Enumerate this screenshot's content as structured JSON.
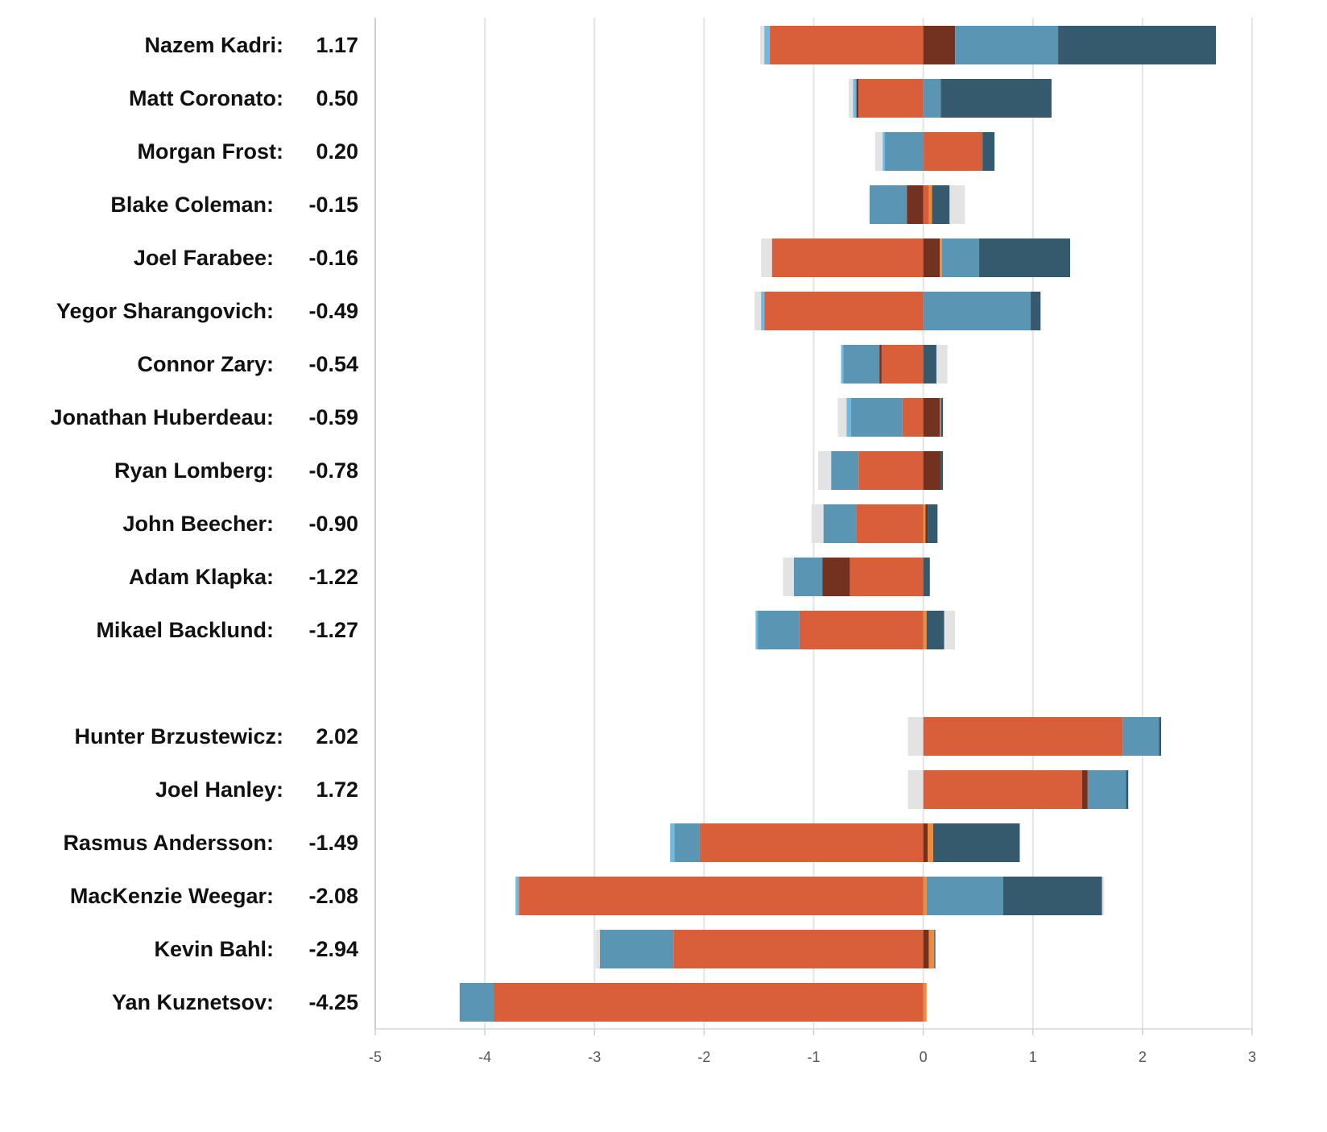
{
  "chart_data": {
    "type": "bar",
    "orientation": "horizontal-stacked-diverging",
    "title": "",
    "xlabel": "",
    "ylabel": "",
    "xlim": [
      -5,
      3
    ],
    "xticks": [
      -5,
      -4,
      -3,
      -2,
      -1,
      0,
      1,
      2,
      3
    ],
    "grid": true,
    "colors": {
      "gray": "#e3e3e3",
      "lightblue": "#6fb9e3",
      "blue": "#5b95b4",
      "red": "#d95f3b",
      "brown": "#73311f",
      "orange": "#ee8a3c",
      "dark": "#365a6d"
    },
    "groups": [
      {
        "players": [
          {
            "name": "Nazem Kadri:",
            "value": "1.17",
            "segments": [
              [
                "gray",
                -1.49,
                -1.45
              ],
              [
                "lightblue",
                -1.45,
                -1.4
              ],
              [
                "red",
                -1.4,
                0
              ],
              [
                "brown",
                0,
                0.29
              ],
              [
                "blue",
                0.29,
                1.23
              ],
              [
                "dark",
                1.23,
                2.67
              ]
            ]
          },
          {
            "name": "Matt Coronato:",
            "value": "0.50",
            "segments": [
              [
                "gray",
                -0.68,
                -0.64
              ],
              [
                "lightblue",
                -0.64,
                -0.61
              ],
              [
                "brown",
                -0.61,
                -0.59
              ],
              [
                "red",
                -0.59,
                0
              ],
              [
                "blue",
                0,
                0.16
              ],
              [
                "dark",
                0.16,
                1.17
              ]
            ]
          },
          {
            "name": "Morgan Frost:",
            "value": "0.20",
            "segments": [
              [
                "gray",
                -0.44,
                -0.37
              ],
              [
                "lightblue",
                -0.37,
                -0.35
              ],
              [
                "blue",
                -0.35,
                0
              ],
              [
                "red",
                0,
                0.54
              ],
              [
                "dark",
                0.54,
                0.65
              ]
            ]
          },
          {
            "name": "Blake Coleman:",
            "value": "-0.15",
            "segments": [
              [
                "blue",
                -0.49,
                -0.15
              ],
              [
                "brown",
                -0.15,
                0
              ],
              [
                "red",
                0,
                0.05
              ],
              [
                "orange",
                0.05,
                0.08
              ],
              [
                "dark",
                0.08,
                0.24
              ],
              [
                "gray",
                0.24,
                0.38
              ]
            ]
          },
          {
            "name": "Joel Farabee:",
            "value": "-0.16",
            "segments": [
              [
                "gray",
                -1.48,
                -1.38
              ],
              [
                "red",
                -1.38,
                0
              ],
              [
                "brown",
                0,
                0.15
              ],
              [
                "orange",
                0.15,
                0.17
              ],
              [
                "blue",
                0.17,
                0.51
              ],
              [
                "dark",
                0.51,
                1.34
              ]
            ]
          },
          {
            "name": "Yegor Sharangovich:",
            "value": "-0.49",
            "segments": [
              [
                "gray",
                -1.54,
                -1.48
              ],
              [
                "lightblue",
                -1.48,
                -1.45
              ],
              [
                "red",
                -1.45,
                0
              ],
              [
                "blue",
                0,
                0.98
              ],
              [
                "dark",
                0.98,
                1.07
              ]
            ]
          },
          {
            "name": "Connor Zary:",
            "value": "-0.54",
            "segments": [
              [
                "lightblue",
                -0.75,
                -0.73
              ],
              [
                "blue",
                -0.73,
                -0.4
              ],
              [
                "brown",
                -0.4,
                -0.38
              ],
              [
                "red",
                -0.38,
                0
              ],
              [
                "dark",
                0,
                0.12
              ],
              [
                "gray",
                0.12,
                0.22
              ]
            ]
          },
          {
            "name": "Jonathan Huberdeau:",
            "value": "-0.59",
            "segments": [
              [
                "gray",
                -0.78,
                -0.7
              ],
              [
                "lightblue",
                -0.7,
                -0.66
              ],
              [
                "blue",
                -0.66,
                -0.19
              ],
              [
                "red",
                -0.19,
                0
              ],
              [
                "brown",
                0,
                0.15
              ],
              [
                "orange",
                0.15,
                0.16
              ],
              [
                "dark",
                0.16,
                0.18
              ]
            ]
          },
          {
            "name": "Ryan Lomberg:",
            "value": "-0.78",
            "segments": [
              [
                "gray",
                -0.96,
                -0.84
              ],
              [
                "blue",
                -0.84,
                -0.59
              ],
              [
                "red",
                -0.59,
                0
              ],
              [
                "brown",
                0,
                0.16
              ],
              [
                "dark",
                0.16,
                0.18
              ]
            ]
          },
          {
            "name": "John Beecher:",
            "value": "-0.90",
            "segments": [
              [
                "gray",
                -1.02,
                -0.91
              ],
              [
                "blue",
                -0.91,
                -0.61
              ],
              [
                "red",
                -0.61,
                0
              ],
              [
                "orange",
                0,
                0.02
              ],
              [
                "brown",
                0.02,
                0.04
              ],
              [
                "dark",
                0.04,
                0.13
              ]
            ]
          },
          {
            "name": "Adam Klapka:",
            "value": "-1.22",
            "segments": [
              [
                "gray",
                -1.28,
                -1.18
              ],
              [
                "blue",
                -1.18,
                -0.92
              ],
              [
                "brown",
                -0.92,
                -0.67
              ],
              [
                "red",
                -0.67,
                0
              ],
              [
                "dark",
                0,
                0.06
              ]
            ]
          },
          {
            "name": "Mikael Backlund:",
            "value": "-1.27",
            "segments": [
              [
                "lightblue",
                -1.53,
                -1.51
              ],
              [
                "blue",
                -1.51,
                -1.13
              ],
              [
                "red",
                -1.13,
                0
              ],
              [
                "orange",
                0,
                0.03
              ],
              [
                "dark",
                0.03,
                0.19
              ],
              [
                "gray",
                0.19,
                0.29
              ]
            ]
          }
        ]
      },
      {
        "players": [
          {
            "name": "Hunter Brzustewicz:",
            "value": "2.02",
            "segments": [
              [
                "gray",
                -0.14,
                0
              ],
              [
                "red",
                0,
                1.82
              ],
              [
                "blue",
                1.82,
                2.15
              ],
              [
                "dark",
                2.15,
                2.17
              ]
            ]
          },
          {
            "name": "Joel Hanley:",
            "value": "1.72",
            "segments": [
              [
                "gray",
                -0.14,
                0
              ],
              [
                "red",
                0,
                1.45
              ],
              [
                "brown",
                1.45,
                1.5
              ],
              [
                "blue",
                1.5,
                1.85
              ],
              [
                "dark",
                1.85,
                1.87
              ]
            ]
          },
          {
            "name": "Rasmus Andersson:",
            "value": "-1.49",
            "segments": [
              [
                "lightblue",
                -2.31,
                -2.27
              ],
              [
                "blue",
                -2.27,
                -2.04
              ],
              [
                "red",
                -2.04,
                0
              ],
              [
                "brown",
                0,
                0.04
              ],
              [
                "orange",
                0.04,
                0.09
              ],
              [
                "dark",
                0.09,
                0.88
              ]
            ]
          },
          {
            "name": "MacKenzie Weegar:",
            "value": "-2.08",
            "segments": [
              [
                "lightblue",
                -3.72,
                -3.69
              ],
              [
                "red",
                -3.69,
                0
              ],
              [
                "orange",
                0,
                0.03
              ],
              [
                "blue",
                0.03,
                0.73
              ],
              [
                "dark",
                0.73,
                1.63
              ],
              [
                "gray",
                1.63,
                1.65
              ]
            ]
          },
          {
            "name": "Kevin Bahl:",
            "value": "-2.94",
            "segments": [
              [
                "gray",
                -2.99,
                -2.95
              ],
              [
                "blue",
                -2.95,
                -2.28
              ],
              [
                "red",
                -2.28,
                0
              ],
              [
                "brown",
                0,
                0.05
              ],
              [
                "orange",
                0.05,
                0.1
              ],
              [
                "dark",
                0.1,
                0.11
              ]
            ]
          },
          {
            "name": "Yan Kuznetsov:",
            "value": "-4.25",
            "segments": [
              [
                "blue",
                -4.23,
                -3.92
              ],
              [
                "red",
                -3.92,
                0
              ],
              [
                "orange",
                0,
                0.03
              ]
            ]
          }
        ]
      }
    ]
  }
}
